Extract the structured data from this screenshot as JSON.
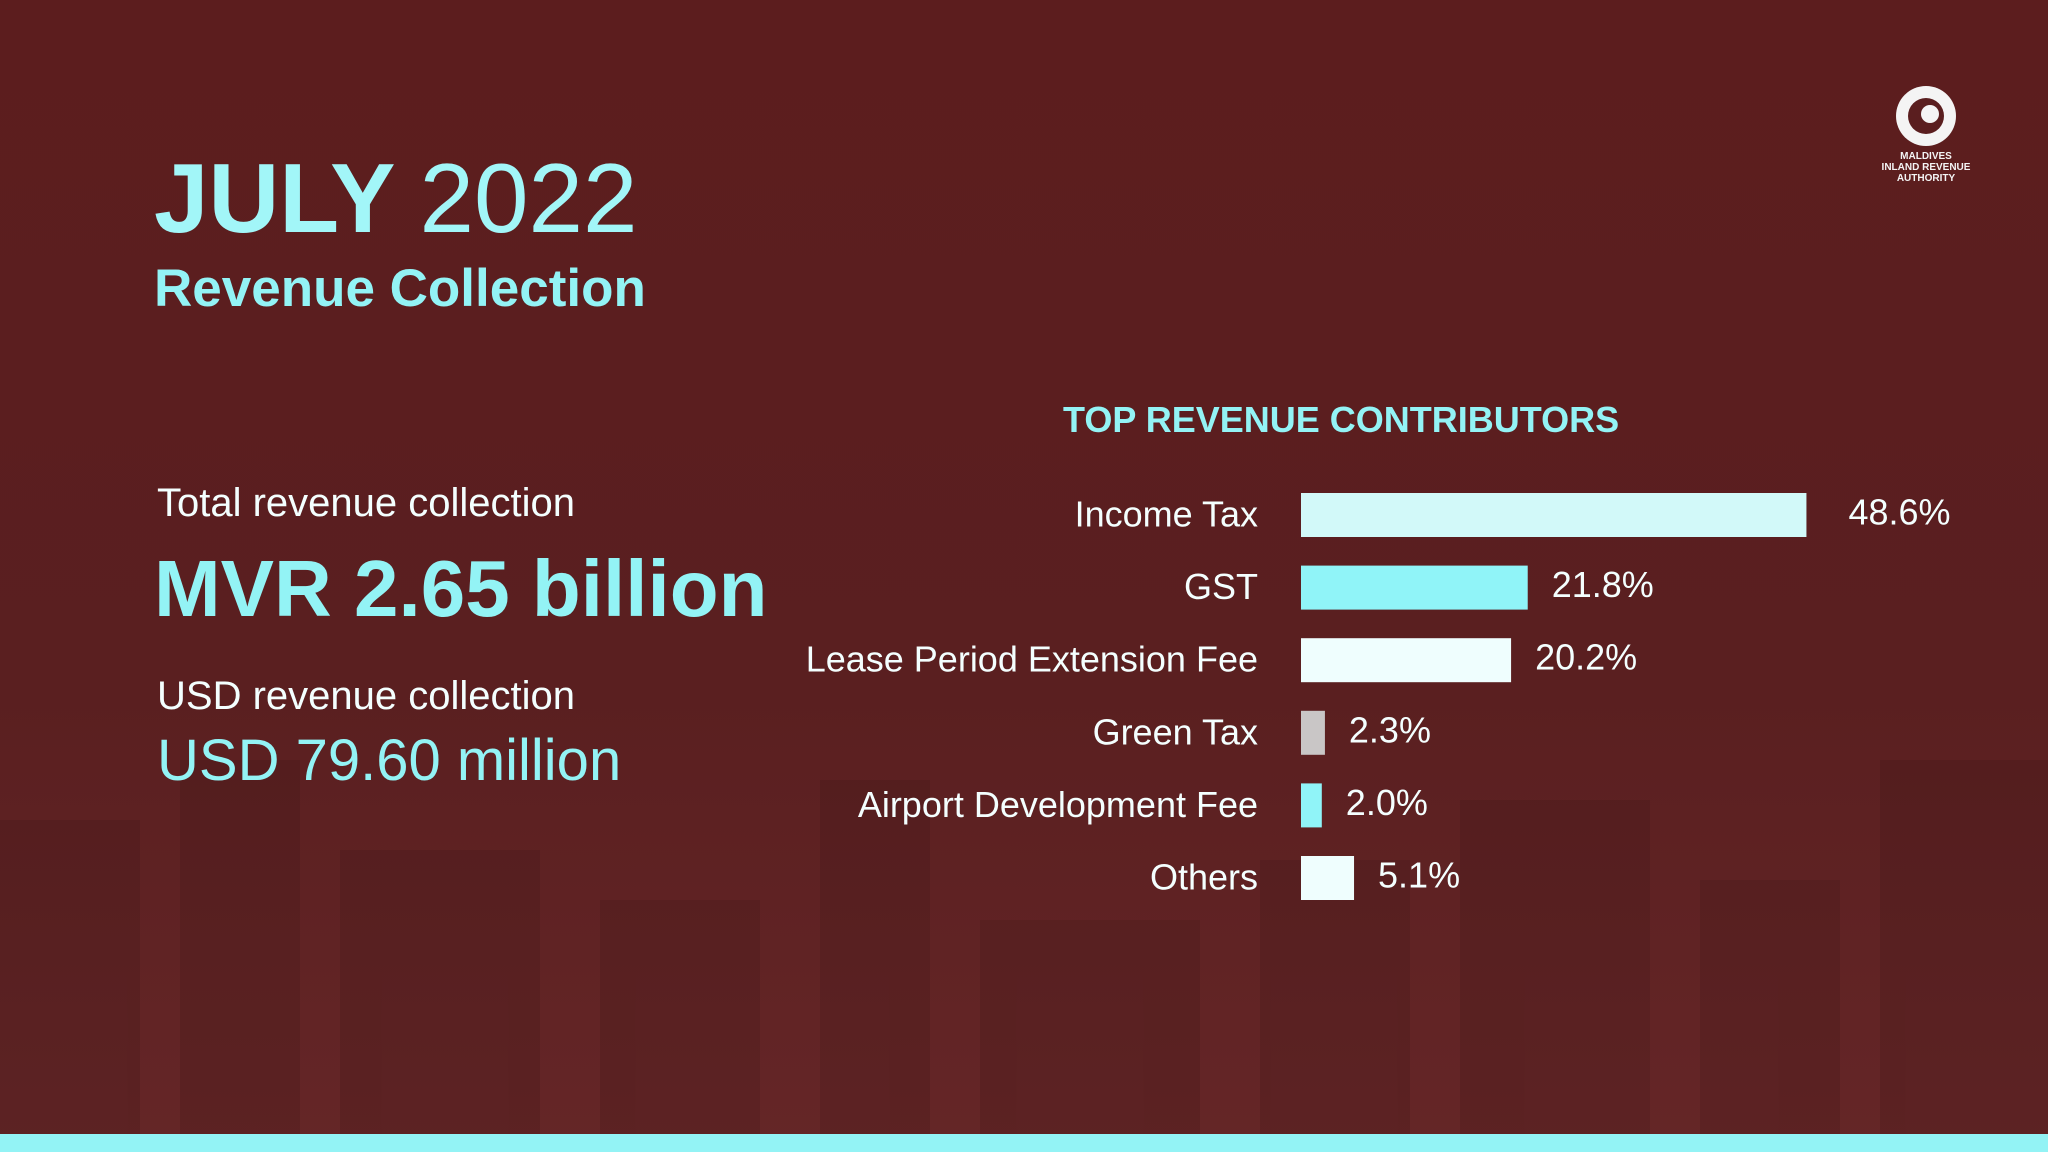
{
  "header": {
    "title_bold": "JULY",
    "title_year": "2022",
    "subtitle": "Revenue Collection"
  },
  "summary": {
    "total_label": "Total revenue collection",
    "total_value": "MVR 2.65 billion",
    "usd_label": "USD revenue collection",
    "usd_value": "USD 79.60 million"
  },
  "logo": {
    "lines": [
      "MALDIVES",
      "INLAND REVENUE",
      "AUTHORITY"
    ]
  },
  "chart_data": {
    "type": "bar",
    "orientation": "horizontal",
    "title": "TOP REVENUE CONTRIBUTORS",
    "categories": [
      "Income Tax",
      "GST",
      "Lease Period Extension Fee",
      "Green Tax",
      "Airport Development Fee",
      "Others"
    ],
    "values": [
      48.6,
      21.8,
      20.2,
      2.3,
      2.0,
      5.1
    ],
    "value_labels": [
      "48.6%",
      "21.8%",
      "20.2%",
      "2.3%",
      "2.0%",
      "5.1%"
    ],
    "colors": [
      "#d2f9f9",
      "#90f4f8",
      "#effefe",
      "#c9c6c6",
      "#90f4f8",
      "#effefe"
    ]
  }
}
